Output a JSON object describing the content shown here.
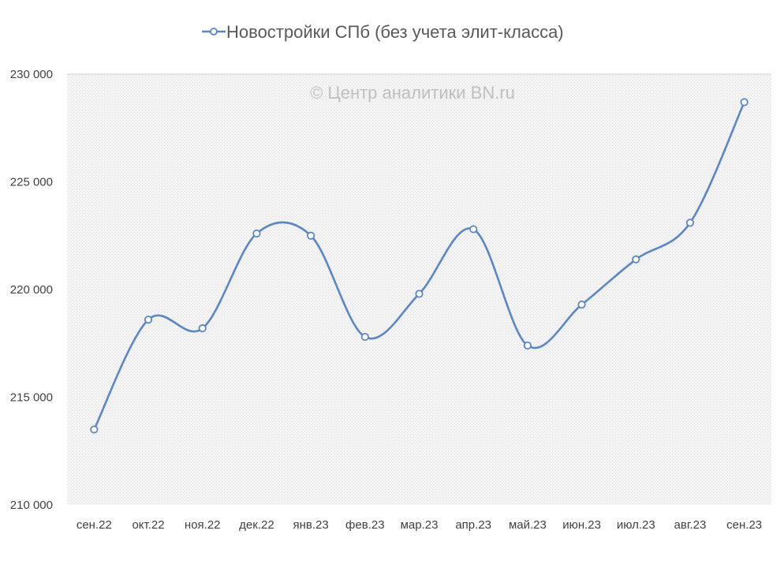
{
  "chart_data": {
    "type": "line",
    "categories": [
      "сен.22",
      "окт.22",
      "ноя.22",
      "дек.22",
      "янв.23",
      "фев.23",
      "мар.23",
      "апр.23",
      "май.23",
      "июн.23",
      "июл.23",
      "авг.23",
      "сен.23"
    ],
    "series": [
      {
        "name": "Новостройки СПб (без учета элит-класса)",
        "values": [
          213500,
          218600,
          218200,
          222600,
          222500,
          217800,
          219800,
          222800,
          217400,
          219300,
          221400,
          223100,
          228700
        ],
        "color": "#5b87c5"
      }
    ],
    "ylim": [
      210000,
      230000
    ],
    "yticks": [
      210000,
      215000,
      220000,
      225000,
      230000
    ],
    "ytick_labels": [
      "210 000",
      "215 000",
      "220 000",
      "225 000",
      "230 000"
    ],
    "smooth": true,
    "grid": "horizontal-top-only",
    "plot_background": "light-gray-pattern",
    "legend_position": "top-center",
    "watermark": "© Центр аналитики BN.ru"
  }
}
